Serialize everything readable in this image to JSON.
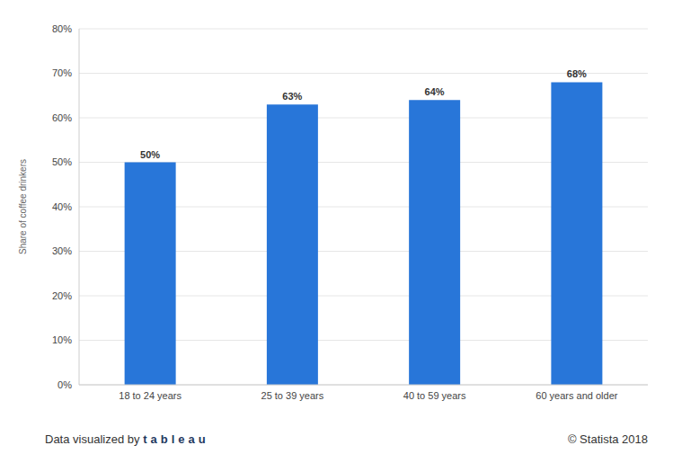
{
  "chart_data": {
    "type": "bar",
    "y_label": "Share of coffee drinkers",
    "categories": [
      "18 to 24 years",
      "25 to 39 years",
      "40 to 59 years",
      "60 years and older"
    ],
    "values": [
      50,
      63,
      64,
      68
    ],
    "value_labels": [
      "50%",
      "63%",
      "64%",
      "68%"
    ],
    "data_labels": true,
    "color": "#2876d9",
    "ylim": [
      0,
      80
    ],
    "yticks": [
      {
        "value": 0,
        "label": "0%"
      },
      {
        "value": 10,
        "label": "10%"
      },
      {
        "value": 20,
        "label": "20%"
      },
      {
        "value": 30,
        "label": "30%"
      },
      {
        "value": 40,
        "label": "40%"
      },
      {
        "value": 50,
        "label": "50%"
      },
      {
        "value": 60,
        "label": "60%"
      },
      {
        "value": 70,
        "label": "70%"
      },
      {
        "value": 80,
        "label": "80%"
      }
    ],
    "grid": true,
    "footer_left": "Data visualized by",
    "footer_logo": "tableau",
    "footer_right": "© Statista 2018"
  }
}
